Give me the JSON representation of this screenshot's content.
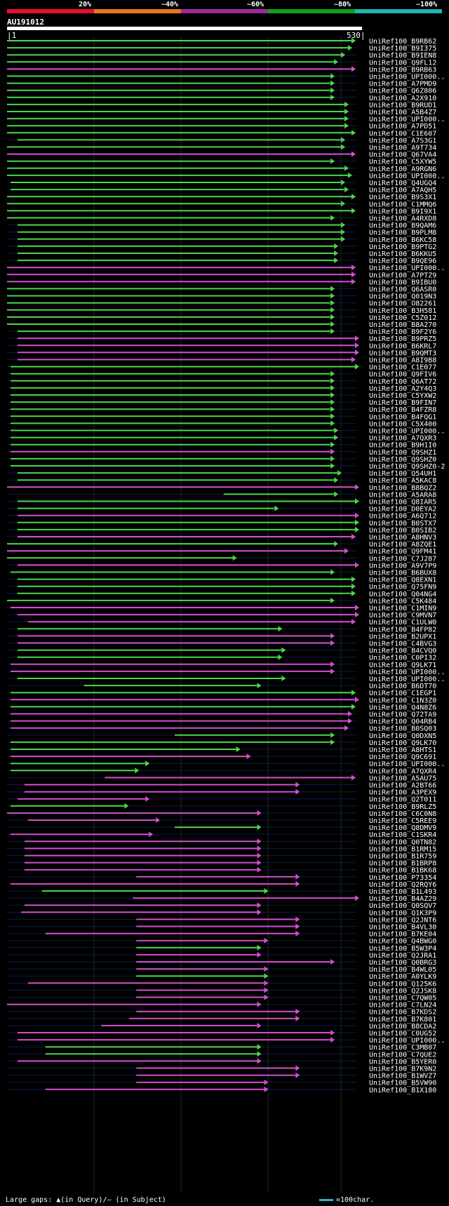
{
  "legend": {
    "labels": [
      "20%",
      "~40%",
      "~60%",
      "~80%",
      "~100%"
    ],
    "colors": [
      "#e8102a",
      "#e8761a",
      "#9c2b9c",
      "#14a01e",
      "#1fb5b5"
    ]
  },
  "query": {
    "title": "AU191012",
    "start": "1",
    "end": "530"
  },
  "footer": {
    "text": "Large gaps: ▲(in Query)/— (in Subject)",
    "scale_label": "=100char."
  },
  "colors": {
    "green": "#4cd64c",
    "magenta": "#d34fd3",
    "cyan": "#29c0e0",
    "yellow": "#ffff60"
  },
  "rows": [
    {
      "label": "UniRef100_B9RB62",
      "color": "green",
      "start": 0.0,
      "end": 0.99
    },
    {
      "label": "UniRef100_B9I375",
      "color": "green",
      "start": 0.0,
      "end": 0.98
    },
    {
      "label": "UniRef100_B9IEN8",
      "color": "green",
      "start": 0.0,
      "end": 0.96
    },
    {
      "label": "UniRef100_Q9FL12",
      "color": "green",
      "start": 0.0,
      "end": 0.94
    },
    {
      "label": "UniRef100_B9RB63",
      "color": "magenta",
      "start": 0.0,
      "end": 0.99
    },
    {
      "label": "UniRef100_UPI000..",
      "color": "green",
      "start": 0.0,
      "end": 0.93
    },
    {
      "label": "UniRef100_A7PMD9",
      "color": "green",
      "start": 0.0,
      "end": 0.93
    },
    {
      "label": "UniRef100_Q6Z806",
      "color": "green",
      "start": 0.0,
      "end": 0.93
    },
    {
      "label": "UniRef100_A2X910",
      "color": "green",
      "start": 0.0,
      "end": 0.93
    },
    {
      "label": "UniRef100_B9RUD1",
      "color": "green",
      "start": 0.0,
      "end": 0.97
    },
    {
      "label": "UniRef100_A5B4Z7",
      "color": "green",
      "start": 0.0,
      "end": 0.97
    },
    {
      "label": "UniRef100_UPI000..",
      "color": "green",
      "start": 0.0,
      "end": 0.97
    },
    {
      "label": "UniRef100_A7PD51",
      "color": "green",
      "start": 0.0,
      "end": 0.97
    },
    {
      "label": "UniRef100_C1E607",
      "color": "green",
      "start": 0.0,
      "end": 0.99
    },
    {
      "label": "UniRef100_A7S3G1",
      "color": "green",
      "start": 0.03,
      "end": 0.96
    },
    {
      "label": "UniRef100_A9T734",
      "color": "green",
      "start": 0.0,
      "end": 0.96
    },
    {
      "label": "UniRef100_Q67VA4",
      "color": "magenta",
      "start": 0.0,
      "end": 0.99
    },
    {
      "label": "UniRef100_C5XYW5",
      "color": "green",
      "start": 0.0,
      "end": 0.93
    },
    {
      "label": "UniRef100_A9RGN6",
      "color": "green",
      "start": 0.0,
      "end": 0.97
    },
    {
      "label": "UniRef100_UPI000..",
      "color": "green",
      "start": 0.0,
      "end": 0.98
    },
    {
      "label": "UniRef100_Q4UGQ4",
      "color": "green",
      "start": 0.01,
      "end": 0.96
    },
    {
      "label": "UniRef100_A7AQH5",
      "color": "green",
      "start": 0.01,
      "end": 0.97
    },
    {
      "label": "UniRef100_B9S3X1",
      "color": "green",
      "start": 0.0,
      "end": 0.99
    },
    {
      "label": "UniRef100_C1MMQ6",
      "color": "green",
      "start": 0.0,
      "end": 0.96
    },
    {
      "label": "UniRef100_B9I9X1",
      "color": "green",
      "start": 0.0,
      "end": 0.99
    },
    {
      "label": "UniRef100_A4RXD8",
      "color": "green",
      "start": 0.0,
      "end": 0.93
    },
    {
      "label": "UniRef100_B9QAM6",
      "color": "green",
      "start": 0.03,
      "end": 0.96
    },
    {
      "label": "UniRef100_B9PLM8",
      "color": "green",
      "start": 0.03,
      "end": 0.96
    },
    {
      "label": "UniRef100_B6KC58",
      "color": "green",
      "start": 0.03,
      "end": 0.96
    },
    {
      "label": "UniRef100_B9PTG2",
      "color": "green",
      "start": 0.03,
      "end": 0.94
    },
    {
      "label": "UniRef100_B6KKU5",
      "color": "green",
      "start": 0.03,
      "end": 0.94
    },
    {
      "label": "UniRef100_B9QE96",
      "color": "green",
      "start": 0.03,
      "end": 0.94
    },
    {
      "label": "UniRef100_UPI000..",
      "color": "magenta",
      "start": 0.0,
      "end": 0.99
    },
    {
      "label": "UniRef100_A7PTZ9",
      "color": "magenta",
      "start": 0.0,
      "end": 0.99
    },
    {
      "label": "UniRef100_B9IBU0",
      "color": "magenta",
      "start": 0.0,
      "end": 0.99
    },
    {
      "label": "UniRef100_Q6ASR0",
      "color": "green",
      "start": 0.0,
      "end": 0.93
    },
    {
      "label": "UniRef100_Q019N3",
      "color": "green",
      "start": 0.0,
      "end": 0.93
    },
    {
      "label": "UniRef100_O82261",
      "color": "green",
      "start": 0.0,
      "end": 0.93
    },
    {
      "label": "UniRef100_B3H581",
      "color": "green",
      "start": 0.0,
      "end": 0.93
    },
    {
      "label": "UniRef100_C5Z012",
      "color": "green",
      "start": 0.0,
      "end": 0.93
    },
    {
      "label": "UniRef100_B8A270",
      "color": "green",
      "start": 0.0,
      "end": 0.93
    },
    {
      "label": "UniRef100_B9F2Y6",
      "color": "green",
      "start": 0.03,
      "end": 0.93
    },
    {
      "label": "UniRef100_B9PRZ5",
      "color": "magenta",
      "start": 0.03,
      "end": 1.0
    },
    {
      "label": "UniRef100_B6KRL7",
      "color": "magenta",
      "start": 0.03,
      "end": 1.0
    },
    {
      "label": "UniRef100_B9QMT3",
      "color": "magenta",
      "start": 0.03,
      "end": 1.0
    },
    {
      "label": "UniRef100_A8I9B8",
      "color": "magenta",
      "start": 0.03,
      "end": 0.99
    },
    {
      "label": "UniRef100_C1E077",
      "color": "green",
      "start": 0.01,
      "end": 1.01
    },
    {
      "label": "UniRef100_Q9FIV6",
      "color": "green",
      "start": 0.01,
      "end": 0.93
    },
    {
      "label": "UniRef100_Q6AT72",
      "color": "green",
      "start": 0.01,
      "end": 0.93
    },
    {
      "label": "UniRef100_A2Y4Q3",
      "color": "green",
      "start": 0.01,
      "end": 0.93
    },
    {
      "label": "UniRef100_C5YXW2",
      "color": "green",
      "start": 0.01,
      "end": 0.93
    },
    {
      "label": "UniRef100_B9FIN7",
      "color": "green",
      "start": 0.01,
      "end": 0.93
    },
    {
      "label": "UniRef100_B4FZR8",
      "color": "green",
      "start": 0.01,
      "end": 0.93
    },
    {
      "label": "UniRef100_B4FQG1",
      "color": "green",
      "start": 0.01,
      "end": 0.93
    },
    {
      "label": "UniRef100_C5X400",
      "color": "green",
      "start": 0.01,
      "end": 0.93
    },
    {
      "label": "UniRef100_UPI000..",
      "color": "green",
      "start": 0.01,
      "end": 0.94
    },
    {
      "label": "UniRef100_A7QXR3",
      "color": "green",
      "start": 0.01,
      "end": 0.94
    },
    {
      "label": "UniRef100_B9H1I0",
      "color": "green",
      "start": 0.01,
      "end": 0.93
    },
    {
      "label": "UniRef100_Q9SHZ1",
      "color": "magenta",
      "start": 0.01,
      "end": 0.93
    },
    {
      "label": "UniRef100_Q9SHZ0",
      "color": "green",
      "start": 0.01,
      "end": 0.93
    },
    {
      "label": "UniRef100_Q9SHZ0-2",
      "color": "green",
      "start": 0.01,
      "end": 0.93
    },
    {
      "label": "UniRef100_Q54UH1",
      "color": "green",
      "start": 0.03,
      "end": 0.95
    },
    {
      "label": "UniRef100_A5KAC8",
      "color": "green",
      "start": 0.03,
      "end": 0.94
    },
    {
      "label": "UniRef100_B8BQZ2",
      "color": "magenta",
      "start": 0.0,
      "end": 1.01
    },
    {
      "label": "UniRef100_A5ARA8",
      "color": "green",
      "start": 0.62,
      "end": 0.94
    },
    {
      "label": "UniRef100_Q8IAR5",
      "color": "green",
      "start": 0.03,
      "end": 1.0
    },
    {
      "label": "UniRef100_D0EYA2",
      "color": "green",
      "start": 0.03,
      "end": 0.77
    },
    {
      "label": "UniRef100_A6Q712",
      "color": "magenta",
      "start": 0.03,
      "end": 1.0
    },
    {
      "label": "UniRef100_B0STX7",
      "color": "green",
      "start": 0.03,
      "end": 1.0
    },
    {
      "label": "UniRef100_B0SIB2",
      "color": "green",
      "start": 0.03,
      "end": 1.0
    },
    {
      "label": "UniRef100_A8HNV3",
      "color": "magenta",
      "start": 0.03,
      "end": 0.99
    },
    {
      "label": "UniRef100_A8ZQE1",
      "color": "green",
      "start": 0.0,
      "end": 0.94
    },
    {
      "label": "UniRef100_Q9FM41",
      "color": "magenta",
      "start": 0.0,
      "end": 0.97
    },
    {
      "label": "UniRef100_C7J287",
      "color": "green",
      "start": 0.0,
      "end": 0.65
    },
    {
      "label": "UniRef100_A9V7P9",
      "color": "magenta",
      "start": 0.03,
      "end": 1.01
    },
    {
      "label": "UniRef100_B6BUX8",
      "color": "green",
      "start": 0.01,
      "end": 0.93
    },
    {
      "label": "UniRef100_Q8EXN1",
      "color": "green",
      "start": 0.03,
      "end": 0.99
    },
    {
      "label": "UniRef100_Q75FN9",
      "color": "green",
      "start": 0.03,
      "end": 0.99
    },
    {
      "label": "UniRef100_Q04NG4",
      "color": "green",
      "start": 0.03,
      "end": 0.99
    },
    {
      "label": "UniRef100_C5K484",
      "color": "green",
      "start": 0.0,
      "end": 0.93
    },
    {
      "label": "UniRef100_C1MIN9",
      "color": "magenta",
      "start": 0.01,
      "end": 1.01
    },
    {
      "label": "UniRef100_C9MVN7",
      "color": "magenta",
      "start": 0.03,
      "end": 1.0
    },
    {
      "label": "UniRef100_C1ULW0",
      "color": "magenta",
      "start": 0.06,
      "end": 0.99
    },
    {
      "label": "UniRef100_B4FP82",
      "color": "green",
      "start": 0.03,
      "end": 0.78
    },
    {
      "label": "UniRef100_B2UPX1",
      "color": "magenta",
      "start": 0.03,
      "end": 0.93
    },
    {
      "label": "UniRef100_C4BVG3",
      "color": "magenta",
      "start": 0.03,
      "end": 0.93
    },
    {
      "label": "UniRef100_B4CVQ0",
      "color": "green",
      "start": 0.03,
      "end": 0.79
    },
    {
      "label": "UniRef100_C0PI32",
      "color": "green",
      "start": 0.03,
      "end": 0.78
    },
    {
      "label": "UniRef100_Q9LK71",
      "color": "magenta",
      "start": 0.01,
      "end": 0.93
    },
    {
      "label": "UniRef100_UPI000..",
      "color": "magenta",
      "start": 0.01,
      "end": 0.93
    },
    {
      "label": "UniRef100_UPI000..",
      "color": "green",
      "start": 0.03,
      "end": 0.79
    },
    {
      "label": "UniRef100_B6DT70",
      "color": "green",
      "start": 0.22,
      "end": 0.72
    },
    {
      "label": "UniRef100_C1EGP1",
      "color": "green",
      "start": 0.01,
      "end": 0.99
    },
    {
      "label": "UniRef100_C1N3Z0",
      "color": "magenta",
      "start": 0.01,
      "end": 1.01
    },
    {
      "label": "UniRef100_Q4N8Z6",
      "color": "green",
      "start": 0.01,
      "end": 0.99
    },
    {
      "label": "UniRef100_Q72TA9",
      "color": "magenta",
      "start": 0.01,
      "end": 0.98
    },
    {
      "label": "UniRef100_Q04RB4",
      "color": "magenta",
      "start": 0.01,
      "end": 0.98
    },
    {
      "label": "UniRef100_B0SQ03",
      "color": "magenta",
      "start": 0.01,
      "end": 0.97
    },
    {
      "label": "UniRef100_Q0DXN5",
      "color": "green",
      "start": 0.48,
      "end": 0.93
    },
    {
      "label": "UniRef100_Q9LK70",
      "color": "green",
      "start": 0.01,
      "end": 0.93
    },
    {
      "label": "UniRef100_A8HTS1",
      "color": "green",
      "start": 0.01,
      "end": 0.66
    },
    {
      "label": "UniRef100_Q9C691",
      "color": "magenta",
      "start": 0.01,
      "end": 0.69
    },
    {
      "label": "UniRef100_UPI000..",
      "color": "green",
      "start": 0.01,
      "end": 0.4
    },
    {
      "label": "UniRef100_A7QXR4",
      "color": "green",
      "start": 0.01,
      "end": 0.37
    },
    {
      "label": "UniRef100_A5AU75",
      "color": "magenta",
      "start": 0.28,
      "end": 0.99
    },
    {
      "label": "UniRef100_A2BT66",
      "color": "magenta",
      "start": 0.05,
      "end": 0.83
    },
    {
      "label": "UniRef100_A3PEX9",
      "color": "magenta",
      "start": 0.05,
      "end": 0.83
    },
    {
      "label": "UniRef100_Q2T011",
      "color": "magenta",
      "start": 0.03,
      "end": 0.4
    },
    {
      "label": "UniRef100_B9RLZ5",
      "color": "green",
      "start": 0.01,
      "end": 0.34
    },
    {
      "label": "UniRef100_C6C0N8",
      "color": "magenta",
      "start": 0.0,
      "end": 0.72
    },
    {
      "label": "UniRef100_C5REE9",
      "color": "magenta",
      "start": 0.06,
      "end": 0.43
    },
    {
      "label": "UniRef100_Q8DMV9",
      "color": "green",
      "start": 0.48,
      "end": 0.72
    },
    {
      "label": "UniRef100_C1SKR4",
      "color": "magenta",
      "start": 0.01,
      "end": 0.41
    },
    {
      "label": "UniRef100_Q0TN82",
      "color": "magenta",
      "start": 0.05,
      "end": 0.72
    },
    {
      "label": "UniRef100_B1RM15",
      "color": "magenta",
      "start": 0.05,
      "end": 0.72
    },
    {
      "label": "UniRef100_B1R759",
      "color": "magenta",
      "start": 0.05,
      "end": 0.72
    },
    {
      "label": "UniRef100_B1BRP8",
      "color": "magenta",
      "start": 0.05,
      "end": 0.72
    },
    {
      "label": "UniRef100_B1BK68",
      "color": "magenta",
      "start": 0.05,
      "end": 0.72
    },
    {
      "label": "UniRef100_P73354",
      "color": "magenta",
      "start": 0.37,
      "end": 0.83
    },
    {
      "label": "UniRef100_Q2RQY6",
      "color": "magenta",
      "start": 0.01,
      "end": 0.83
    },
    {
      "label": "UniRef100_B1L493",
      "color": "green",
      "start": 0.1,
      "end": 0.74
    },
    {
      "label": "UniRef100_B4AZ29",
      "color": "magenta",
      "start": 0.36,
      "end": 1.01
    },
    {
      "label": "UniRef100_Q0SQV7",
      "color": "magenta",
      "start": 0.05,
      "end": 0.72
    },
    {
      "label": "UniRef100_Q1K3P9",
      "color": "magenta",
      "start": 0.04,
      "end": 0.72
    },
    {
      "label": "UniRef100_Q2JNT6",
      "color": "magenta",
      "start": 0.37,
      "end": 0.83
    },
    {
      "label": "UniRef100_B4VL30",
      "color": "magenta",
      "start": 0.37,
      "end": 0.83
    },
    {
      "label": "UniRef100_B7KE04",
      "color": "magenta",
      "start": 0.11,
      "end": 0.83
    },
    {
      "label": "UniRef100_Q4BWG0",
      "color": "magenta",
      "start": 0.37,
      "end": 0.74
    },
    {
      "label": "UniRef100_B5W3P4",
      "color": "green",
      "start": 0.37,
      "end": 0.72
    },
    {
      "label": "UniRef100_Q2JRA1",
      "color": "magenta",
      "start": 0.37,
      "end": 0.72
    },
    {
      "label": "UniRef100_Q0BRG3",
      "color": "magenta",
      "start": 0.37,
      "end": 0.93
    },
    {
      "label": "UniRef100_B4WL05",
      "color": "magenta",
      "start": 0.37,
      "end": 0.74
    },
    {
      "label": "UniRef100_A0YLK9",
      "color": "green",
      "start": 0.37,
      "end": 0.74
    },
    {
      "label": "UniRef100_Q125K6",
      "color": "magenta",
      "start": 0.06,
      "end": 0.74
    },
    {
      "label": "UniRef100_Q2JSK8",
      "color": "magenta",
      "start": 0.37,
      "end": 0.74
    },
    {
      "label": "UniRef100_C7QW05",
      "color": "magenta",
      "start": 0.37,
      "end": 0.74
    },
    {
      "label": "UniRef100_C7LN24",
      "color": "magenta",
      "start": 0.0,
      "end": 0.72
    },
    {
      "label": "UniRef100_B7KDS2",
      "color": "magenta",
      "start": 0.37,
      "end": 0.83
    },
    {
      "label": "UniRef100_B7K801",
      "color": "magenta",
      "start": 0.35,
      "end": 0.83
    },
    {
      "label": "UniRef100_B8CDA2",
      "color": "magenta",
      "start": 0.27,
      "end": 0.72
    },
    {
      "label": "UniRef100_C0UG52",
      "color": "magenta",
      "start": 0.03,
      "end": 0.93
    },
    {
      "label": "UniRef100_UPI000..",
      "color": "magenta",
      "start": 0.03,
      "end": 0.93
    },
    {
      "label": "UniRef100_C3MB07",
      "color": "green",
      "start": 0.11,
      "end": 0.72
    },
    {
      "label": "UniRef100_C7QUE2",
      "color": "green",
      "start": 0.11,
      "end": 0.72
    },
    {
      "label": "UniRef100_B5YER0",
      "color": "magenta",
      "start": 0.03,
      "end": 0.72
    },
    {
      "label": "UniRef100_B7K9N2",
      "color": "magenta",
      "start": 0.37,
      "end": 0.83
    },
    {
      "label": "UniRef100_B1WVZ7",
      "color": "magenta",
      "start": 0.37,
      "end": 0.83
    },
    {
      "label": "UniRef100_B5VW90",
      "color": "magenta",
      "start": 0.37,
      "end": 0.74
    },
    {
      "label": "UniRef100_B1X180",
      "color": "magenta",
      "start": 0.11,
      "end": 0.74
    }
  ]
}
